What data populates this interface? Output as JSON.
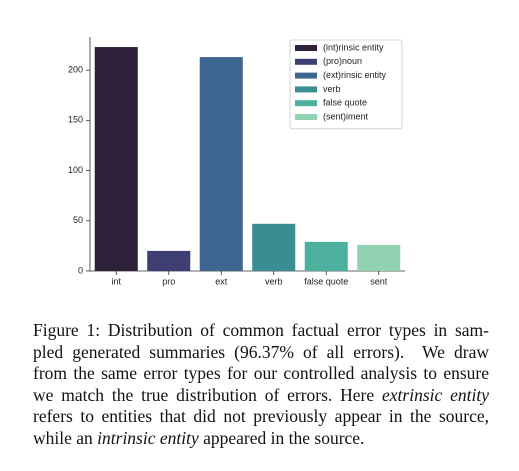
{
  "chart_data": {
    "type": "bar",
    "categories": [
      "int",
      "pro",
      "ext",
      "verb",
      "false quote",
      "sent"
    ],
    "values": [
      223,
      20,
      213,
      47,
      29,
      26
    ],
    "colors": [
      "#2d2239",
      "#3f3e73",
      "#3e6690",
      "#3a8d93",
      "#4daf9e",
      "#90d2b1"
    ],
    "legend": [
      "(int)rinsic entity",
      "(pro)noun",
      "(ext)rinsic entity",
      "verb",
      "false quote",
      "(sent)iment"
    ],
    "ylim": [
      0,
      233
    ],
    "yticks": [
      0,
      50,
      100,
      150,
      200
    ],
    "grid": false
  },
  "caption": {
    "lines": [
      [
        {
          "text": "Figure 1: Distribution of common factual error types in sam-",
          "italic": false
        }
      ],
      [
        {
          "text": "pled generated summaries (96.37% of all errors).  We draw",
          "italic": false
        }
      ],
      [
        {
          "text": "from the same error types for our controlled analysis to ensure",
          "italic": false
        }
      ],
      [
        {
          "text": "we match the true distribution of errors. Here ",
          "italic": false
        },
        {
          "text": "extrinsic entity",
          "italic": true
        }
      ],
      [
        {
          "text": "refers to entities that did not previously appear in the source,",
          "italic": false
        }
      ],
      [
        {
          "text": "while an ",
          "italic": false
        },
        {
          "text": "intrinsic entity",
          "italic": true
        },
        {
          "text": " appeared in the source.",
          "italic": false
        }
      ]
    ]
  }
}
